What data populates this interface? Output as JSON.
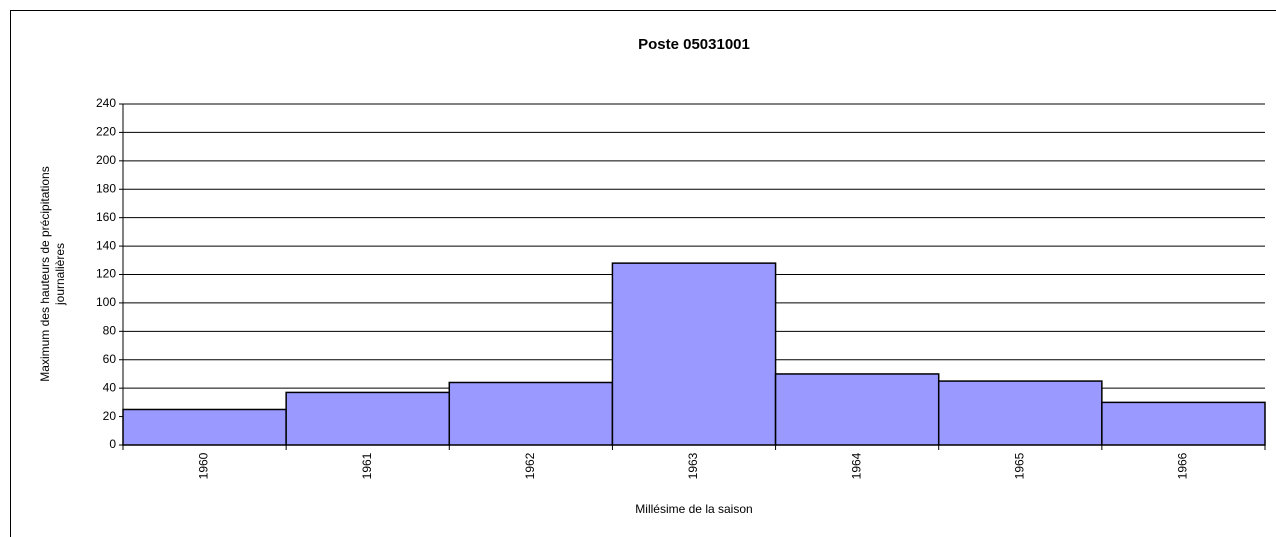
{
  "chart_data": {
    "type": "bar",
    "title": "Poste 05031001",
    "x_label": "Millésime de la saison",
    "y_label": [
      "Maximum des hauteurs de précipitations",
      "journalières"
    ],
    "categories": [
      "1960",
      "1961",
      "1962",
      "1963",
      "1964",
      "1965",
      "1966"
    ],
    "values": [
      25,
      37,
      44,
      128,
      50,
      45,
      30
    ],
    "color": "#9999ff",
    "ylim": [
      0,
      240
    ],
    "yticks": [
      0,
      20,
      40,
      60,
      80,
      100,
      120,
      140,
      160,
      180,
      200,
      220,
      240
    ],
    "grid": true
  }
}
